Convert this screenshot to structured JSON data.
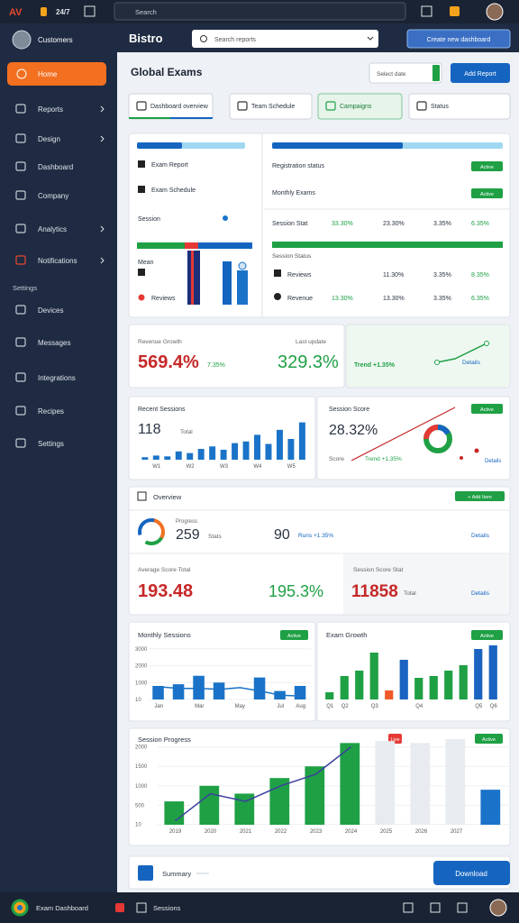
{
  "topbar": {
    "logo": "AV",
    "badge": "24/7",
    "search": "Search"
  },
  "sidebar": {
    "user": "Customers",
    "active": "Home",
    "nav": [
      "Reports",
      "Design",
      "Dashboard",
      "Company",
      "Analytics",
      "Notifications"
    ],
    "section": "Settings",
    "nav2": [
      "Devices",
      "Messages",
      "Integrations",
      "Recipes",
      "Settings"
    ]
  },
  "header": {
    "brand": "Bistro",
    "search": "Search reports",
    "button": "Create new dashboard"
  },
  "page": {
    "title": "Global Exams",
    "filter": "Select date",
    "button": "Add Report"
  },
  "tabs": [
    "Dashboard overview",
    "Team Schedule",
    "Campaigns",
    "Status"
  ],
  "overview": {
    "left": [
      "Exam Report",
      "Exam Schedule",
      "Session",
      "Mean",
      "Reviews"
    ],
    "right": {
      "rows": [
        [
          "Registration status",
          "Active"
        ],
        [
          "Monthly Exams",
          "Active"
        ]
      ],
      "table": [
        [
          "Session Stat",
          "33.30%",
          "23.30%",
          "3.35%",
          "6.35%"
        ]
      ],
      "section": "Session Status",
      "table2": [
        [
          "Reviews",
          "11.30%",
          "3.35%",
          "8.35%"
        ],
        [
          "Revenue",
          "13.30%",
          "13.30%",
          "3.35%",
          "6.35%"
        ]
      ]
    }
  },
  "kpi": {
    "title": "Revenue Growth",
    "updated": "Last update",
    "main": "569.4%",
    "delta": "7.35%",
    "secondary": "329.3%",
    "trend": "Trend +1.35%",
    "link": "Details"
  },
  "recent": {
    "title": "Recent Sessions",
    "count": "118",
    "unit": "Total",
    "chart": {
      "ylim": [
        0,
        50
      ],
      "categories": [
        null,
        "W1",
        null,
        null,
        "W2",
        null,
        null,
        "W3",
        null,
        null,
        "W4",
        null,
        null,
        "W5",
        null
      ],
      "series": [
        {
          "color": "#1a73c8",
          "values": [
            3,
            5,
            4,
            10,
            8,
            13,
            16,
            12,
            20,
            22,
            30,
            19,
            36,
            25,
            45
          ]
        }
      ]
    }
  },
  "score": {
    "title": "Session Score",
    "badge": "Active",
    "value": "28.32%",
    "label": "Score",
    "trend": "Trend +1.35%"
  },
  "overview2": {
    "title": "Overview",
    "badge": "+ Add Item",
    "progress": "Progress",
    "count": "259",
    "count_unit": "Stats",
    "runs": "90",
    "runs_delta": "Runs +1.35%",
    "link": "Details",
    "avg_title": "Average Score Total",
    "avg": "193.48",
    "avg_delta": "195.3%",
    "stat_title": "Session Score Stat",
    "stat": "11858",
    "stat_unit": "Total",
    "stat_link": "Details"
  },
  "sessions": {
    "title": "Monthly Sessions",
    "badge": "Active",
    "chart": {
      "ylim": [
        0,
        3200
      ],
      "yticks": [
        10,
        1000,
        2000,
        3000
      ],
      "categories": [
        "Jan",
        null,
        "Mar",
        null,
        "May",
        null,
        "Jul",
        "Aug"
      ],
      "series": [
        {
          "color": "#1a73c8",
          "values": [
            800,
            900,
            1400,
            1000,
            null,
            1300,
            500,
            800
          ]
        }
      ],
      "line": {
        "color": "#1a73c8",
        "values": [
          750,
          650,
          650,
          600,
          700,
          500,
          250,
          200
        ]
      }
    }
  },
  "growth": {
    "title": "Exam Growth",
    "badge": "Active",
    "chart": {
      "ylim": [
        0,
        3200
      ],
      "categories": [
        "Q1",
        "Q2",
        null,
        "Q3",
        null,
        null,
        "Q4",
        null,
        null,
        null,
        "Q5",
        "Q6"
      ],
      "series": [
        {
          "color": "#1fa045",
          "values": [
            400,
            1300,
            1600,
            2600,
            null,
            null,
            1200,
            1300,
            1600,
            1900,
            null,
            null
          ]
        },
        {
          "color": "#1a63c0",
          "values": [
            null,
            null,
            null,
            null,
            null,
            2200,
            null,
            null,
            null,
            null,
            2800,
            3000
          ]
        },
        {
          "color": "#f05a28",
          "values": [
            null,
            null,
            null,
            null,
            500,
            null,
            null,
            null,
            null,
            null,
            null,
            null
          ]
        }
      ]
    }
  },
  "progress": {
    "title": "Session Progress",
    "badge": "Live",
    "badge2": "Active",
    "chart": {
      "ylim": [
        0,
        2200
      ],
      "yticks": [
        10,
        500,
        1000,
        1500,
        2000
      ],
      "categories": [
        "2019",
        "2020",
        "2021",
        "2022",
        "2023",
        "2024",
        "2025",
        "2026",
        "2027",
        null
      ],
      "series": [
        {
          "color": "#1fa045",
          "values": [
            600,
            1000,
            800,
            1200,
            1500,
            2100,
            null,
            null,
            null,
            null
          ]
        },
        {
          "color": "#e8ebef",
          "values": [
            null,
            null,
            null,
            null,
            null,
            null,
            2150,
            2100,
            2200,
            null
          ]
        },
        {
          "color": "#1a73c8",
          "values": [
            null,
            null,
            null,
            null,
            null,
            null,
            null,
            null,
            null,
            900
          ]
        }
      ],
      "line": {
        "color": "#3b3f9e",
        "values": [
          100,
          800,
          600,
          1000,
          1300,
          2000,
          null,
          null,
          null,
          null
        ]
      }
    }
  },
  "summary": {
    "label": "Summary",
    "button": "Download"
  },
  "footer": {
    "app": "Exam Dashboard",
    "tab": "Sessions"
  }
}
